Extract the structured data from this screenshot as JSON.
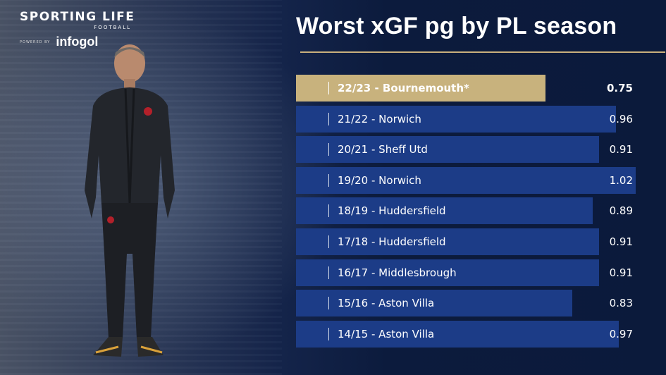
{
  "brand": {
    "name": "SPORTING LIFE",
    "section": "FOOTBALL",
    "powered_by": "POWERED BY",
    "partner": "infogol"
  },
  "chart_data": {
    "type": "bar",
    "orientation": "horizontal",
    "title": "Worst xGF pg by PL season",
    "xlabel": "",
    "ylabel": "",
    "xlim": [
      0,
      1.02
    ],
    "categories": [
      "22/23 - Bournemouth*",
      "21/22 - Norwich",
      "20/21 - Sheff Utd",
      "19/20 - Norwich",
      "18/19 - Huddersfield",
      "17/18 - Huddersfield",
      "16/17 - Middlesbrough",
      "15/16 - Aston Villa",
      "14/15 - Aston Villa"
    ],
    "values": [
      0.75,
      0.96,
      0.91,
      1.02,
      0.89,
      0.91,
      0.91,
      0.83,
      0.97
    ],
    "value_labels": [
      "0.75",
      "0.96",
      "0.91",
      "1.02",
      "0.89",
      "0.91",
      "0.91",
      "0.83",
      "0.97"
    ],
    "highlight_index": 0,
    "colors": {
      "bar": "#1c3c87",
      "highlight": "#c8b27d",
      "rule": "#c9b07c"
    },
    "grid": false,
    "legend": "none"
  }
}
